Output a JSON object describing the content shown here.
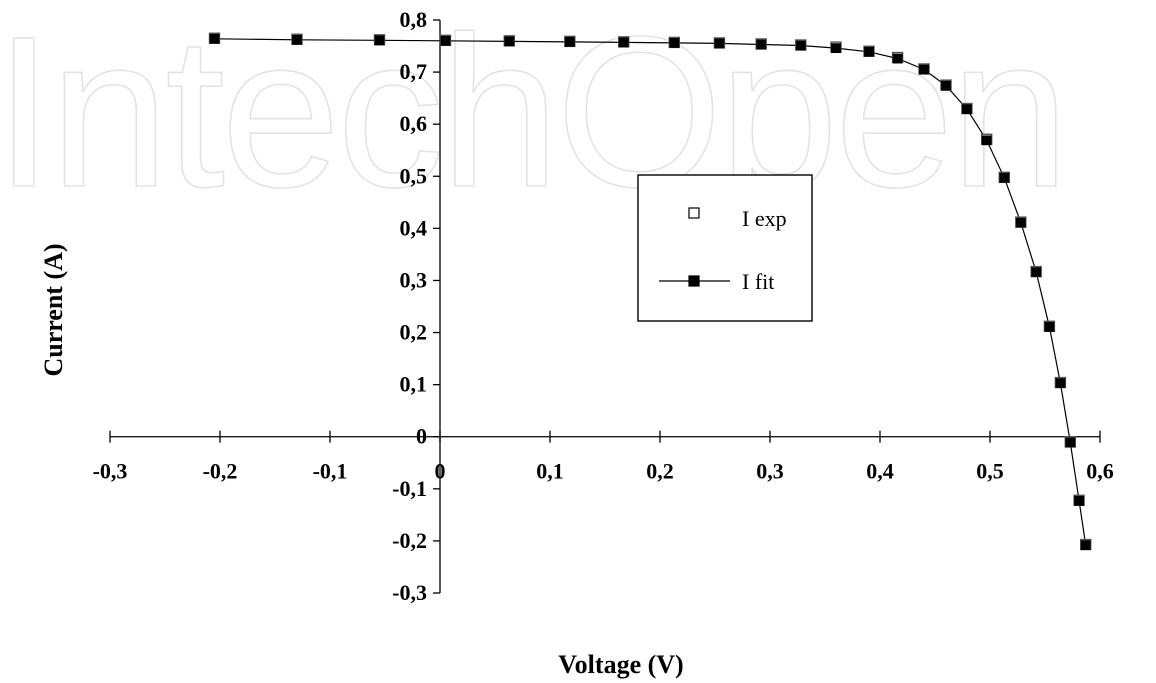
{
  "watermark": "IntechOpen",
  "chart_data": {
    "type": "scatter",
    "title": "",
    "xlabel": "Voltage (V)",
    "ylabel": "Current (A)",
    "xlim": [
      -0.3,
      0.6
    ],
    "ylim": [
      -0.3,
      0.8
    ],
    "x_ticks": [
      "-0,3",
      "-0,2",
      "-0,1",
      "0",
      "0,1",
      "0,2",
      "0,3",
      "0,4",
      "0,5",
      "0,6"
    ],
    "y_ticks": [
      "-0,3",
      "-0,2",
      "-0,1",
      "0",
      "0,1",
      "0,2",
      "0,3",
      "0,4",
      "0,5",
      "0,6",
      "0,7",
      "0,8"
    ],
    "grid": false,
    "legend_position": "center-right",
    "series": [
      {
        "name": "I exp",
        "marker": "open-square",
        "line": false,
        "x": [
          -0.205,
          -0.13,
          -0.055,
          0.005,
          0.063,
          0.118,
          0.167,
          0.213,
          0.254,
          0.292,
          0.328,
          0.36,
          0.39,
          0.416,
          0.44,
          0.46,
          0.479,
          0.497,
          0.513,
          0.528,
          0.542,
          0.554,
          0.564,
          0.573,
          0.581,
          0.587
        ],
        "y": [
          0.765,
          0.763,
          0.762,
          0.761,
          0.76,
          0.759,
          0.758,
          0.757,
          0.756,
          0.754,
          0.752,
          0.748,
          0.74,
          0.728,
          0.706,
          0.675,
          0.63,
          0.571,
          0.498,
          0.412,
          0.317,
          0.212,
          0.104,
          -0.01,
          -0.122,
          -0.207
        ]
      },
      {
        "name": "I fit",
        "marker": "filled-square",
        "line": true,
        "x": [
          -0.205,
          -0.13,
          -0.055,
          0.005,
          0.063,
          0.118,
          0.167,
          0.213,
          0.254,
          0.292,
          0.328,
          0.36,
          0.39,
          0.416,
          0.44,
          0.46,
          0.479,
          0.497,
          0.513,
          0.528,
          0.542,
          0.554,
          0.564,
          0.573,
          0.581,
          0.587
        ],
        "y": [
          0.764,
          0.762,
          0.761,
          0.76,
          0.759,
          0.758,
          0.757,
          0.756,
          0.755,
          0.753,
          0.751,
          0.746,
          0.739,
          0.726,
          0.705,
          0.674,
          0.629,
          0.569,
          0.497,
          0.411,
          0.316,
          0.211,
          0.103,
          -0.011,
          -0.123,
          -0.208
        ]
      }
    ]
  }
}
